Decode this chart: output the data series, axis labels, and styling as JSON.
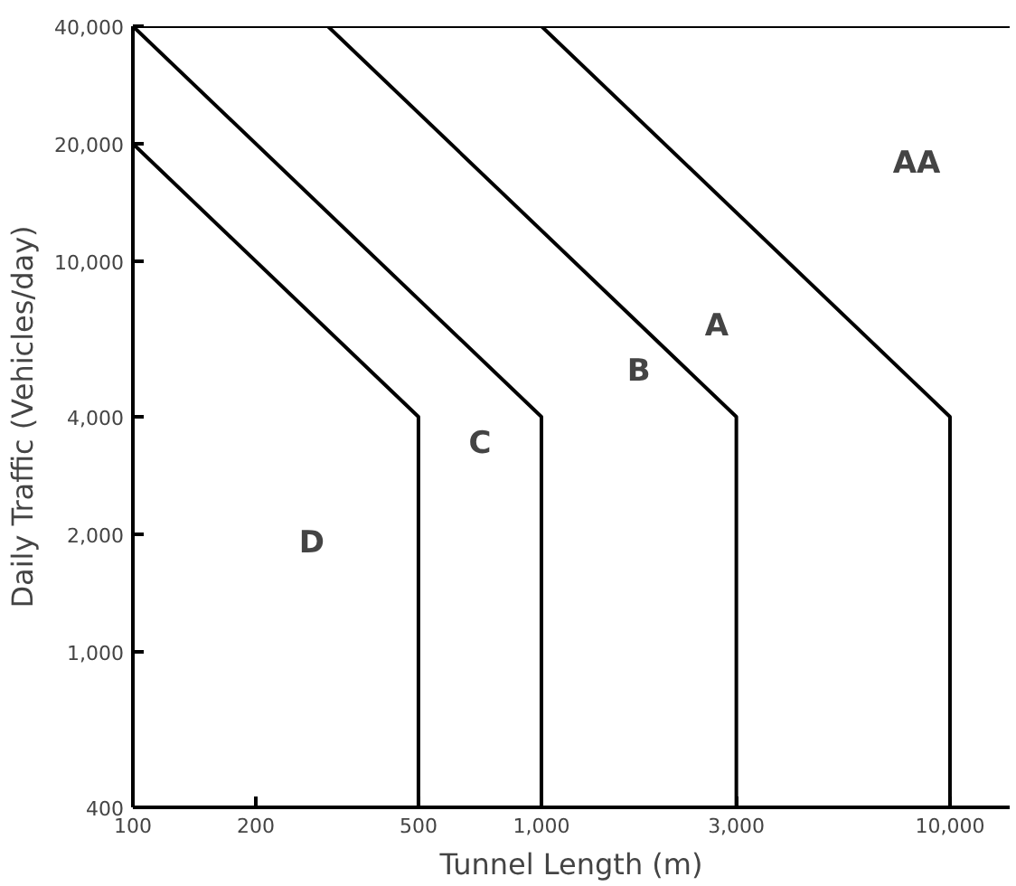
{
  "chart_data": {
    "type": "line",
    "xlabel": "Tunnel Length (m)",
    "ylabel": "Daily Traffic (Vehicles/day)",
    "log": "xy",
    "grid": false,
    "marker": "none",
    "line_style": "solid",
    "xlim": [
      100,
      14000
    ],
    "ylim": [
      400,
      40000
    ],
    "xticks": [
      100,
      200,
      500,
      {
        "value": 1000,
        "label": "1,000"
      },
      {
        "value": 3000,
        "label": "3,000"
      },
      {
        "value": 10000,
        "label": "10,000"
      }
    ],
    "yticks": [
      400,
      {
        "value": 1000,
        "label": "1,000"
      },
      {
        "value": 2000,
        "label": "2,000"
      },
      {
        "value": 4000,
        "label": "4,000"
      },
      {
        "value": 10000,
        "label": "10,000"
      },
      {
        "value": 20000,
        "label": "20,000"
      },
      {
        "value": 40000,
        "label": "40,000"
      }
    ],
    "series": [
      {
        "color": "#000000",
        "x": [
          100,
          500,
          500
        ],
        "values": [
          20000,
          4000,
          400
        ]
      },
      {
        "color": "#000000",
        "x": [
          100,
          1000,
          1000
        ],
        "values": [
          40000,
          4000,
          400
        ]
      },
      {
        "color": "#000000",
        "x": [
          300,
          3000,
          3000
        ],
        "values": [
          40000,
          4000,
          400
        ]
      },
      {
        "color": "#000000",
        "x": [
          1000,
          10000,
          10000
        ],
        "values": [
          40000,
          4000,
          400
        ]
      }
    ],
    "ref_lines": [
      {
        "axis": "y",
        "value": 40000,
        "color": "#000000"
      }
    ],
    "annotations": [
      "D",
      "C",
      "B",
      "A",
      "AA"
    ]
  }
}
